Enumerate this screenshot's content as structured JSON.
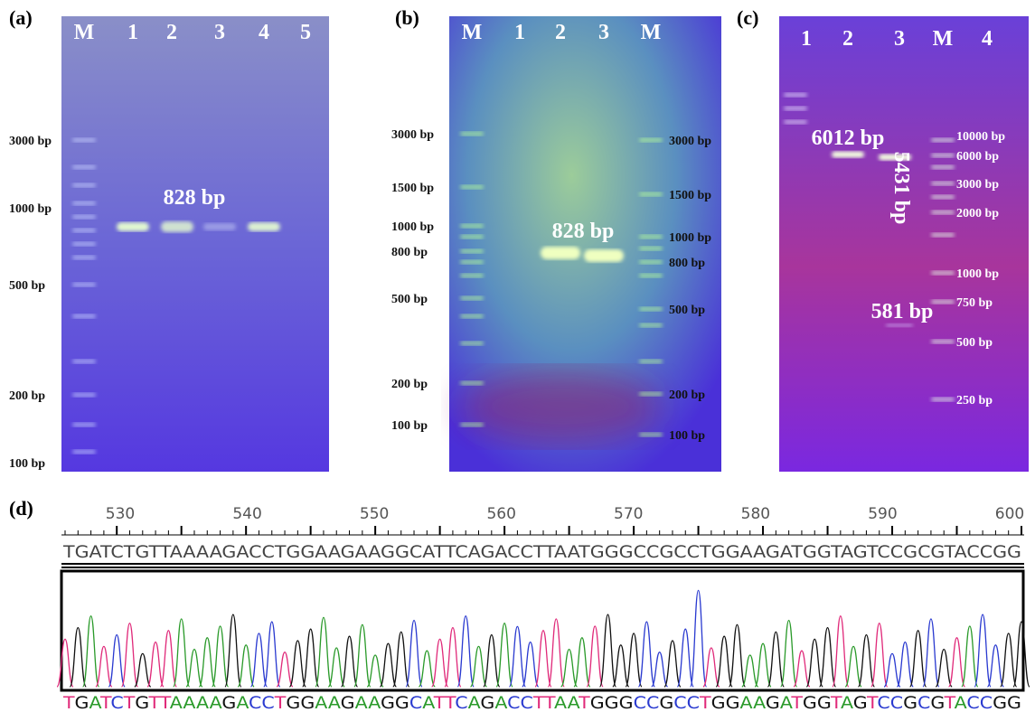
{
  "panels": [
    {
      "label": "(a)",
      "lanes": [
        "M",
        "1",
        "2",
        "3",
        "4",
        "5"
      ],
      "markers_left": [
        "3000 bp",
        "1000 bp",
        "500 bp",
        "200 bp",
        "100 bp"
      ],
      "markers_right": [],
      "annotations": [
        "828 bp"
      ]
    },
    {
      "label": "(b)",
      "lanes": [
        "M",
        "1",
        "2",
        "3",
        "M"
      ],
      "markers_left": [
        "3000 bp",
        "1500 bp",
        "1000 bp",
        "800 bp",
        "500 bp",
        "200 bp",
        "100 bp"
      ],
      "markers_right": [
        "3000 bp",
        "1500 bp",
        "1000 bp",
        "800 bp",
        "500 bp",
        "200 bp",
        "100 bp"
      ],
      "annotations": [
        "828 bp"
      ]
    },
    {
      "label": "(c)",
      "lanes": [
        "1",
        "2",
        "3",
        "M",
        "4"
      ],
      "markers_left": [],
      "markers_right": [
        "10000 bp",
        "6000 bp",
        "3000 bp",
        "2000 bp",
        "1000 bp",
        "750 bp",
        "500 bp",
        "250 bp"
      ],
      "annotations": [
        "6012 bp",
        "5431 bp",
        "581 bp"
      ]
    }
  ],
  "sequencing": {
    "label": "(d)",
    "positions": [
      530,
      540,
      550,
      560,
      570,
      580,
      590,
      600
    ],
    "sequence": "TGATCTGTTAAAAGACCTGGAAGAAGGCATTCAGACCTTAATGGGCCGCCTGGAAGATGGTAGTCCGCGTACCGG",
    "called_sequence": "TGATCTGTTAAAAGACCTGGAAGAAGGCATTCAGACCTTAATGGGCCGCCTGGAAGATGGTAGTCCGCGTACCGG"
  }
}
